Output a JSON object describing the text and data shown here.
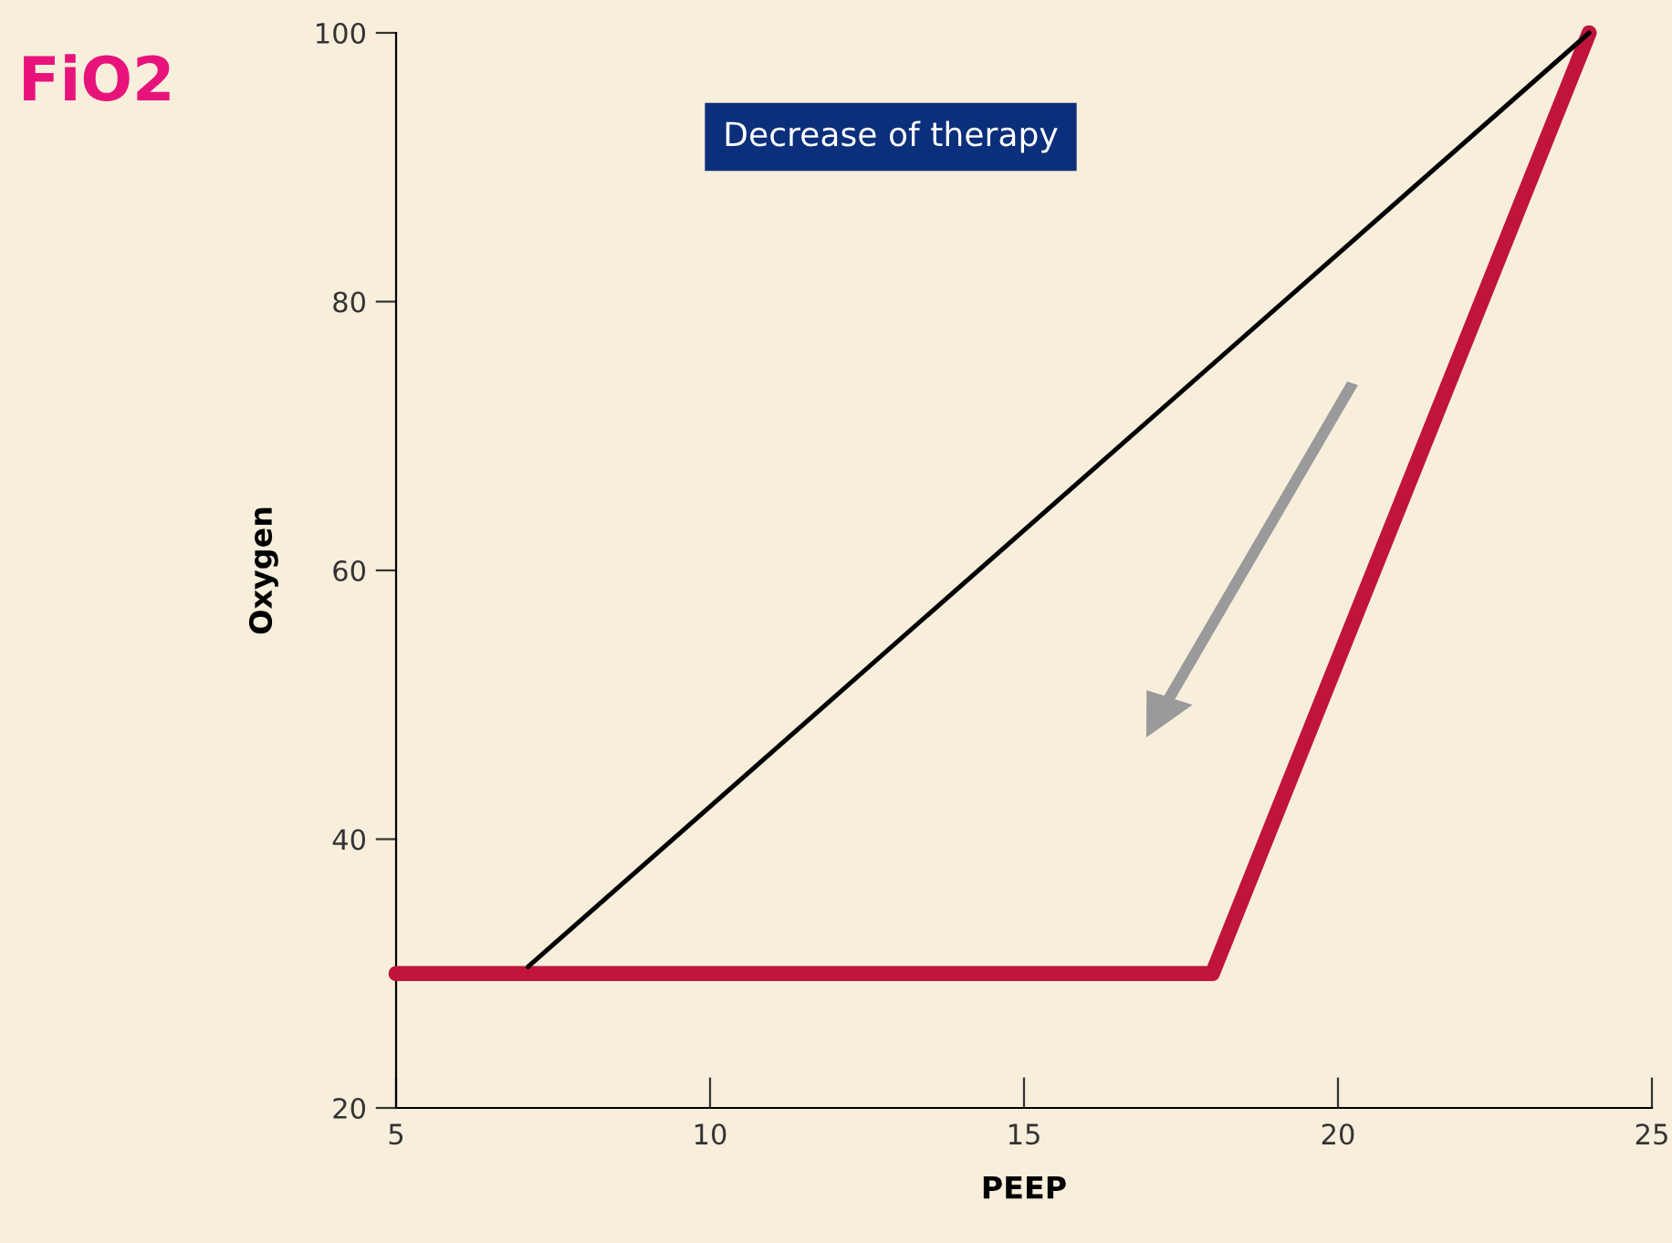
{
  "chart_data": {
    "type": "line",
    "title": "FiO2",
    "xlabel": "PEEP",
    "ylabel": "Oxygen",
    "annotations": [
      "Decrease of therapy"
    ],
    "series": [
      {
        "color": "#000000",
        "x": [
          7.1,
          24
        ],
        "values": [
          30.5,
          100
        ]
      },
      {
        "color": "#c0143c",
        "x": [
          5,
          18,
          24
        ],
        "values": [
          30,
          30,
          100
        ]
      }
    ],
    "xlim": [
      5,
      25
    ],
    "xticks": [
      5,
      10,
      15,
      20,
      25
    ],
    "ylim": [
      20,
      100
    ],
    "yticks": [
      20,
      40,
      60,
      80,
      100
    ],
    "grid": false,
    "legend": false,
    "marker": "none",
    "line_style": "solid"
  }
}
